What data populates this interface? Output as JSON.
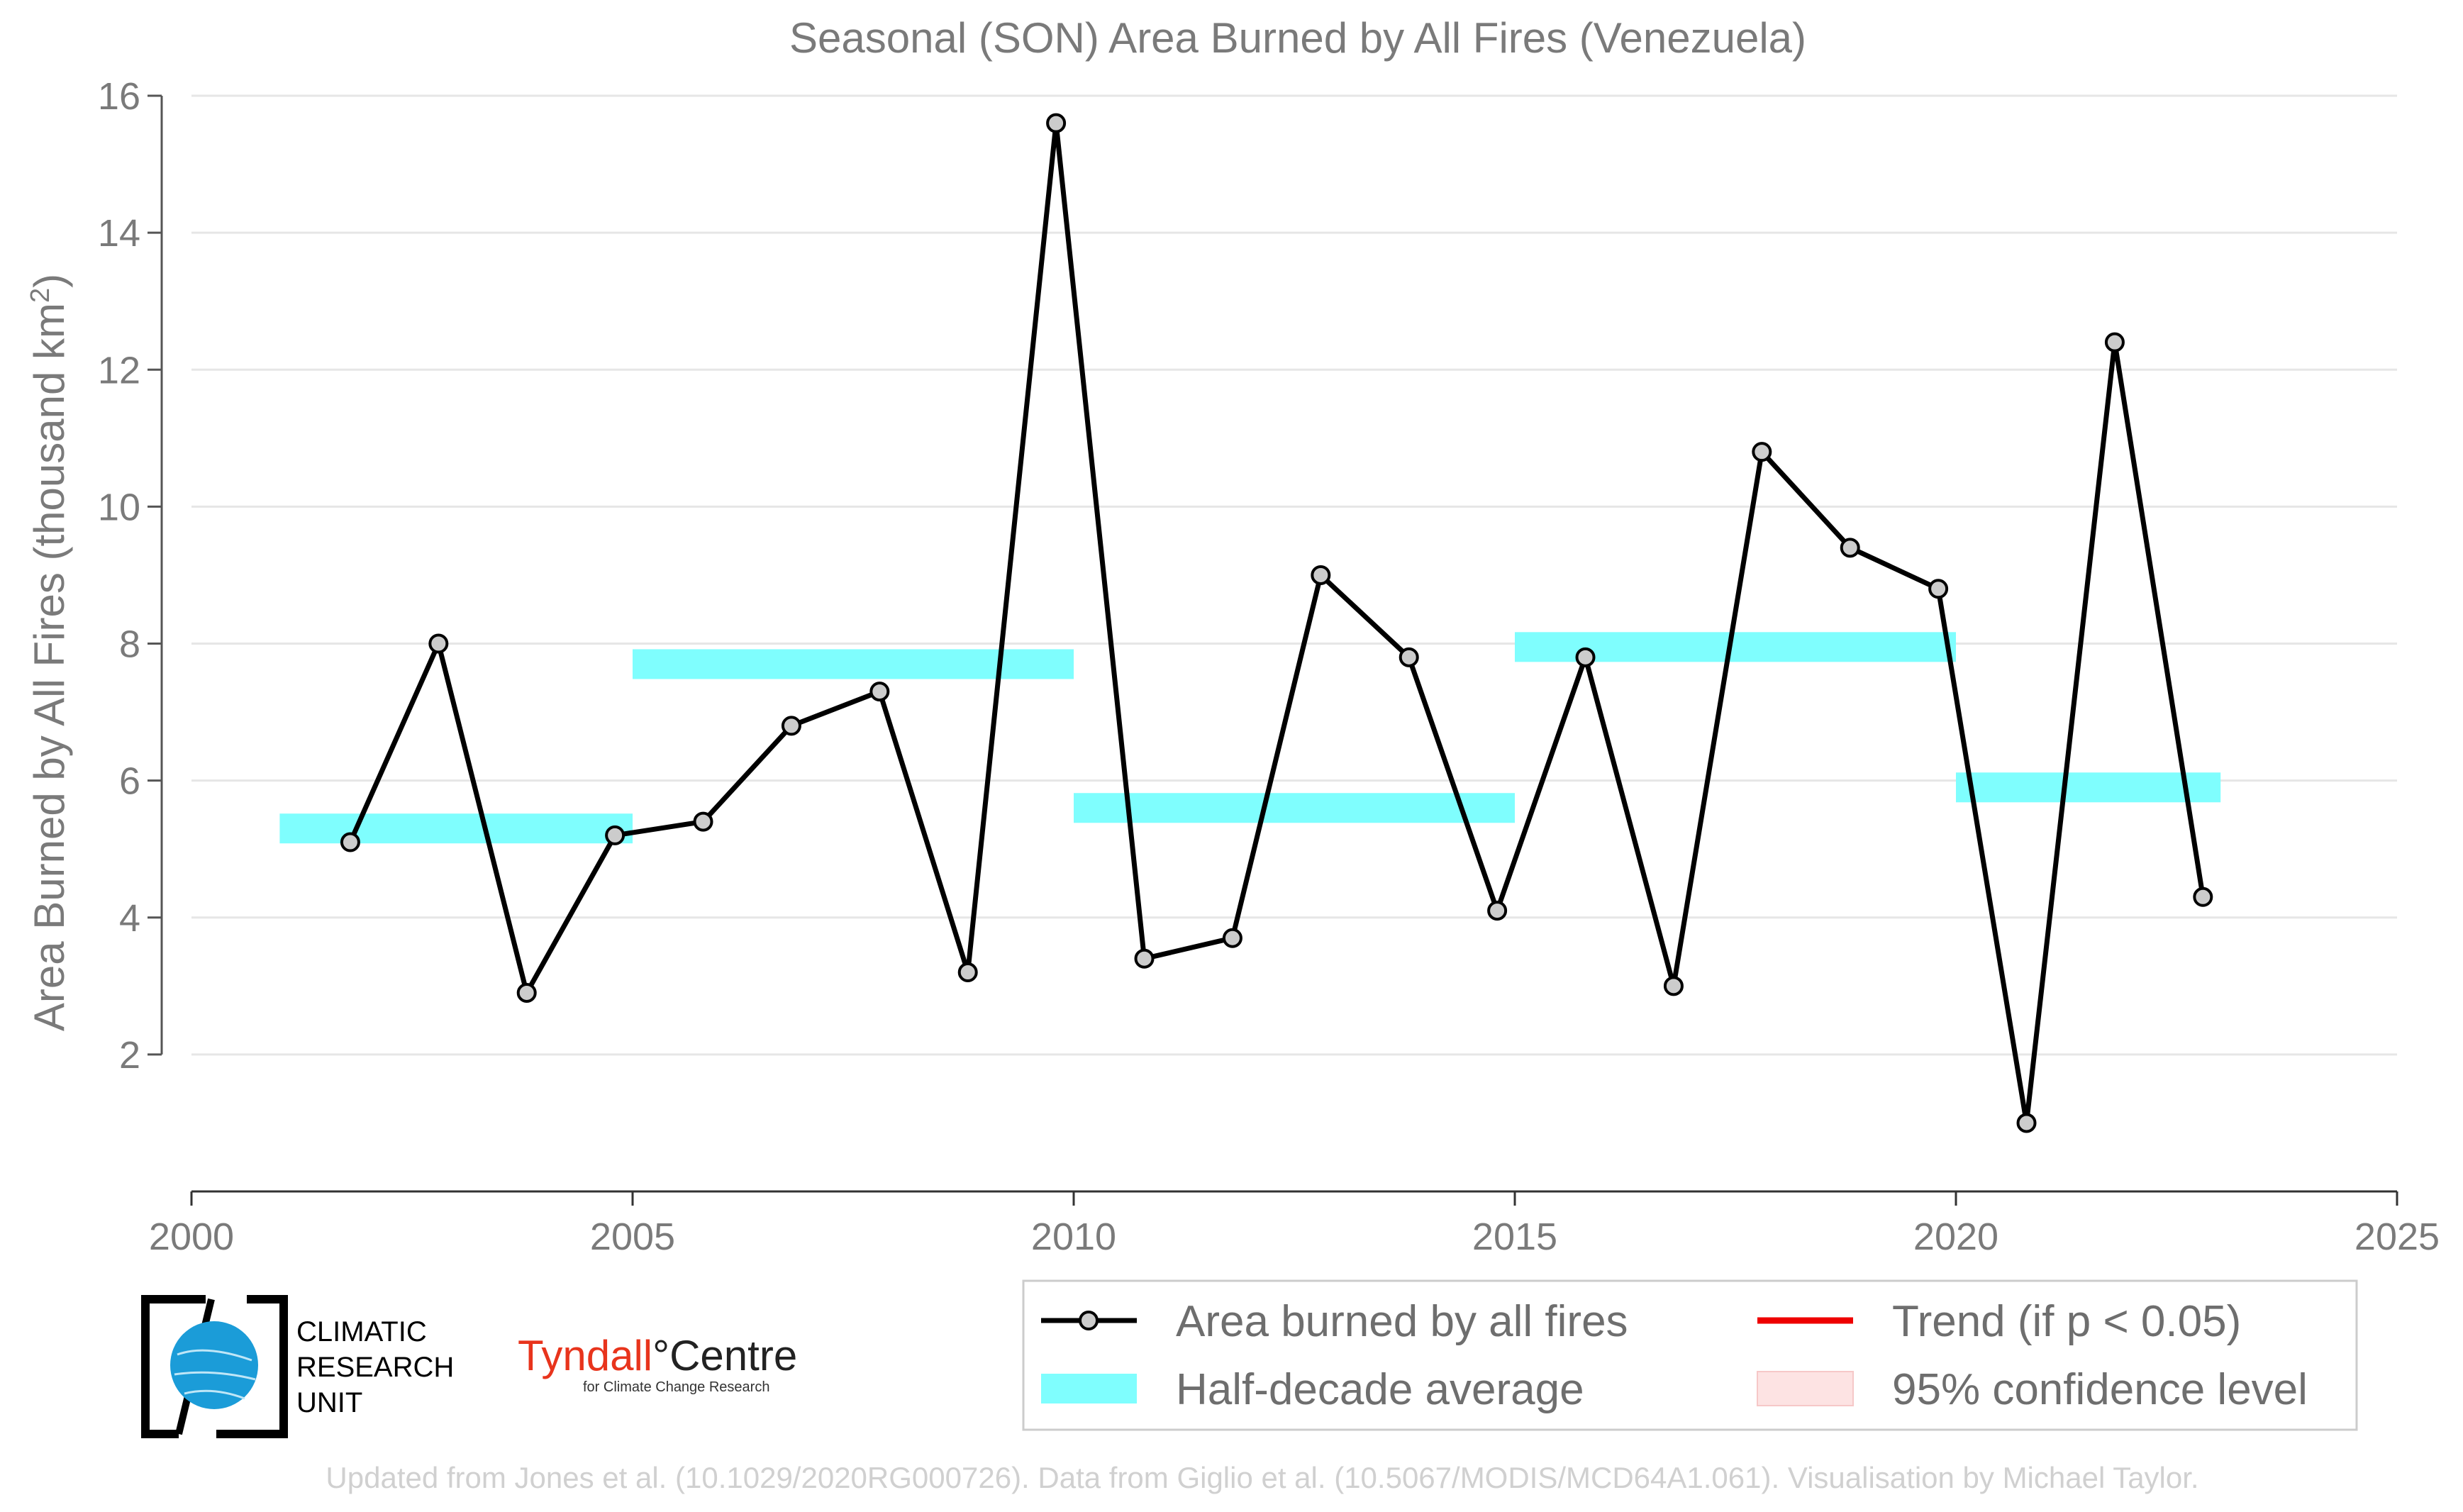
{
  "chart_data": {
    "type": "line",
    "title": "Seasonal (SON) Area Burned by All Fires (Venezuela)",
    "xlabel": "",
    "ylabel": "Area Burned by All Fires (thousand km",
    "ylabel_sup": "2",
    "ylabel_close": ")",
    "xlim": [
      2000,
      2025
    ],
    "ylim": [
      0,
      16
    ],
    "xticks": [
      2000,
      2005,
      2010,
      2015,
      2020,
      2025
    ],
    "yticks": [
      2,
      4,
      6,
      8,
      10,
      12,
      14,
      16
    ],
    "grid": "horizontal",
    "series": [
      {
        "name": "Area burned by all fires",
        "color": "#000000",
        "marker_fill": "#cccccc",
        "x": [
          2001.8,
          2002.8,
          2003.8,
          2004.8,
          2005.8,
          2006.8,
          2007.8,
          2008.8,
          2009.8,
          2010.8,
          2011.8,
          2012.8,
          2013.8,
          2014.8,
          2015.8,
          2016.8,
          2017.8,
          2018.8,
          2019.8,
          2020.8,
          2021.8,
          2022.8
        ],
        "y": [
          5.1,
          8.0,
          2.9,
          5.2,
          5.4,
          6.8,
          7.3,
          3.2,
          15.6,
          3.4,
          3.7,
          9.0,
          7.8,
          4.1,
          7.8,
          3.0,
          10.8,
          9.4,
          8.8,
          1.0,
          12.4,
          4.3
        ]
      }
    ],
    "half_decade_average": {
      "name": "Half-decade average",
      "color": "#7ffefe",
      "segments": [
        {
          "x0": 2001,
          "x1": 2005,
          "y": 5.3
        },
        {
          "x0": 2005,
          "x1": 2010,
          "y": 7.7
        },
        {
          "x0": 2010,
          "x1": 2015,
          "y": 5.6
        },
        {
          "x0": 2015,
          "x1": 2020,
          "y": 7.95
        },
        {
          "x0": 2020,
          "x1": 2023,
          "y": 5.9
        }
      ]
    },
    "legend": {
      "placement": "bottom-right",
      "items": [
        {
          "label": "Area burned by all fires",
          "kind": "line-marker",
          "color": "#000000"
        },
        {
          "label": "Trend (if p < 0.05)",
          "kind": "line",
          "color": "#ee0000"
        },
        {
          "label": "Half-decade average",
          "kind": "band",
          "color": "#7ffefe"
        },
        {
          "label": "95% confidence level",
          "kind": "patch",
          "color": "#fde3e3"
        }
      ]
    }
  },
  "logos": {
    "cru": [
      "CLIMATIC",
      "RESEARCH",
      "UNIT"
    ],
    "tyndall_red": "Tyndall",
    "tyndall_dark": "°Centre",
    "tyndall_sub": "for Climate Change Research"
  },
  "credit": "Updated from Jones et al. (10.1029/2020RG000726). Data from Giglio et al. (10.5067/MODIS/MCD64A1.061). Visualisation by Michael Taylor.",
  "colors": {
    "axis": "#555555",
    "grid": "#e6e6e6",
    "text": "#7a7a7a",
    "cru_blue": "#1b9cd8",
    "tyndall_red": "#e8341c"
  }
}
